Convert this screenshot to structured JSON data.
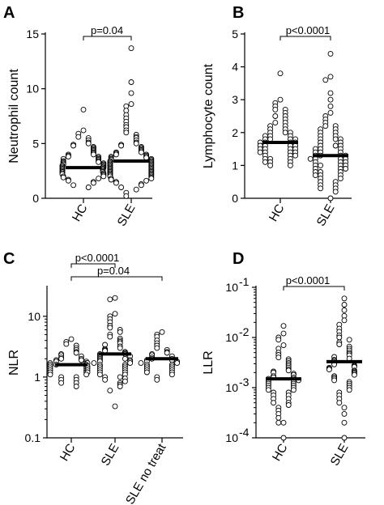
{
  "chart_data": [
    {
      "type": "scatter",
      "panel": "A",
      "ylabel": "Neutrophil count",
      "ylim": [
        0,
        15
      ],
      "yticks": [
        "0",
        "5",
        "10",
        "15"
      ],
      "categories": [
        "HC",
        "SLE"
      ],
      "medians": [
        2.8,
        3.4
      ],
      "annotations": [
        {
          "text": "p=0.04",
          "between": [
            0,
            1
          ]
        }
      ],
      "series": [
        {
          "category": "HC",
          "values": [
            8.1,
            6.2,
            5.9,
            5.6,
            5.5,
            5.3,
            5.1,
            5.0,
            4.9,
            4.8,
            4.7,
            4.6,
            4.5,
            4.4,
            4.3,
            4.2,
            4.1,
            4.0,
            4.0,
            3.9,
            3.8,
            3.8,
            3.7,
            3.6,
            3.6,
            3.5,
            3.4,
            3.4,
            3.3,
            3.3,
            3.2,
            3.2,
            3.1,
            3.1,
            3.0,
            3.0,
            2.9,
            2.9,
            2.8,
            2.8,
            2.8,
            2.7,
            2.7,
            2.6,
            2.6,
            2.5,
            2.5,
            2.4,
            2.4,
            2.3,
            2.3,
            2.2,
            2.2,
            2.1,
            2.0,
            2.0,
            1.9,
            1.8,
            1.7,
            1.6,
            1.5,
            1.4,
            1.2,
            1.0
          ]
        },
        {
          "category": "SLE",
          "values": [
            13.7,
            10.6,
            9.6,
            8.6,
            8.4,
            8.0,
            7.6,
            7.3,
            7.0,
            6.7,
            6.5,
            6.2,
            6.0,
            5.8,
            5.6,
            5.5,
            5.3,
            5.1,
            5.0,
            4.9,
            4.8,
            4.7,
            4.6,
            4.5,
            4.4,
            4.3,
            4.2,
            4.2,
            4.1,
            4.0,
            4.0,
            3.9,
            3.8,
            3.8,
            3.7,
            3.7,
            3.6,
            3.6,
            3.5,
            3.5,
            3.4,
            3.4,
            3.3,
            3.3,
            3.2,
            3.2,
            3.1,
            3.1,
            3.0,
            3.0,
            2.9,
            2.9,
            2.8,
            2.8,
            2.7,
            2.7,
            2.6,
            2.6,
            2.5,
            2.5,
            2.4,
            2.4,
            2.3,
            2.3,
            2.2,
            2.2,
            2.1,
            2.1,
            2.0,
            2.0,
            1.9,
            1.8,
            1.8,
            1.7,
            1.6,
            1.5,
            1.4,
            1.3,
            1.2,
            1.0,
            0.8,
            0.5,
            0.2
          ]
        }
      ]
    },
    {
      "type": "scatter",
      "panel": "B",
      "ylabel": "Lymphocyte count",
      "ylim": [
        0,
        5
      ],
      "yticks": [
        "0",
        "1",
        "2",
        "3",
        "4",
        "5"
      ],
      "categories": [
        "HC",
        "SLE"
      ],
      "medians": [
        1.7,
        1.3
      ],
      "annotations": [
        {
          "text": "p<0.0001",
          "between": [
            0,
            1
          ]
        }
      ],
      "series": [
        {
          "category": "HC",
          "values": [
            3.8,
            3.0,
            2.9,
            2.8,
            2.7,
            2.7,
            2.6,
            2.5,
            2.5,
            2.4,
            2.3,
            2.3,
            2.2,
            2.2,
            2.1,
            2.1,
            2.0,
            2.0,
            2.0,
            1.9,
            1.9,
            1.9,
            1.8,
            1.8,
            1.8,
            1.8,
            1.7,
            1.7,
            1.7,
            1.7,
            1.6,
            1.6,
            1.6,
            1.6,
            1.5,
            1.5,
            1.5,
            1.5,
            1.4,
            1.4,
            1.4,
            1.4,
            1.3,
            1.3,
            1.3,
            1.2,
            1.2,
            1.2,
            1.1,
            1.1,
            1.1,
            1.0,
            1.0
          ]
        },
        {
          "category": "SLE",
          "values": [
            4.4,
            3.7,
            3.6,
            3.2,
            3.0,
            2.8,
            2.6,
            2.5,
            2.4,
            2.3,
            2.2,
            2.2,
            2.1,
            2.1,
            2.0,
            2.0,
            1.9,
            1.9,
            1.8,
            1.8,
            1.8,
            1.7,
            1.7,
            1.6,
            1.6,
            1.6,
            1.5,
            1.5,
            1.5,
            1.4,
            1.4,
            1.4,
            1.3,
            1.3,
            1.3,
            1.3,
            1.2,
            1.2,
            1.2,
            1.2,
            1.1,
            1.1,
            1.1,
            1.0,
            1.0,
            1.0,
            1.0,
            0.9,
            0.9,
            0.9,
            0.8,
            0.8,
            0.8,
            0.7,
            0.7,
            0.7,
            0.6,
            0.6,
            0.5,
            0.5,
            0.4,
            0.4,
            0.3,
            0.3,
            0.2,
            0.0
          ]
        }
      ]
    },
    {
      "type": "scatter",
      "panel": "C",
      "ylabel": "NLR",
      "yscale": "log",
      "ylim": [
        0.1,
        30
      ],
      "yticks": [
        "0.1",
        "1",
        "10"
      ],
      "categories": [
        "HC",
        "SLE",
        "SLE no treat"
      ],
      "medians": [
        1.6,
        2.4,
        2.0
      ],
      "annotations": [
        {
          "text": "p<0.0001",
          "between": [
            0,
            1
          ]
        },
        {
          "text": "p=0.04",
          "between": [
            0,
            2
          ]
        }
      ],
      "series": [
        {
          "category": "HC",
          "values": [
            4.2,
            3.8,
            3.5,
            3.3,
            3.0,
            2.8,
            2.6,
            2.5,
            2.4,
            2.3,
            2.2,
            2.1,
            2.0,
            2.0,
            1.9,
            1.9,
            1.8,
            1.8,
            1.7,
            1.7,
            1.7,
            1.6,
            1.6,
            1.6,
            1.5,
            1.5,
            1.5,
            1.4,
            1.4,
            1.4,
            1.3,
            1.3,
            1.3,
            1.2,
            1.2,
            1.2,
            1.1,
            1.1,
            1.0,
            1.0,
            0.9,
            0.9,
            0.8,
            0.8,
            0.7
          ]
        },
        {
          "category": "SLE",
          "values": [
            20,
            19,
            11,
            10,
            9.0,
            8.0,
            7.0,
            6.5,
            6.0,
            5.5,
            5.0,
            4.6,
            4.3,
            4.0,
            3.8,
            3.6,
            3.4,
            3.2,
            3.0,
            2.9,
            2.8,
            2.7,
            2.6,
            2.5,
            2.4,
            2.4,
            2.3,
            2.2,
            2.2,
            2.1,
            2.0,
            2.0,
            1.9,
            1.9,
            1.8,
            1.8,
            1.7,
            1.7,
            1.6,
            1.6,
            1.5,
            1.5,
            1.4,
            1.4,
            1.3,
            1.3,
            1.2,
            1.2,
            1.1,
            1.1,
            1.0,
            1.0,
            0.95,
            0.9,
            0.85,
            0.8,
            0.75,
            0.7,
            0.6,
            0.33
          ]
        },
        {
          "category": "SLE no treat",
          "values": [
            5.5,
            5.0,
            4.6,
            4.0,
            3.6,
            3.3,
            3.0,
            2.8,
            2.6,
            2.5,
            2.4,
            2.3,
            2.2,
            2.1,
            2.0,
            2.0,
            1.9,
            1.9,
            1.8,
            1.8,
            1.7,
            1.7,
            1.6,
            1.6,
            1.5,
            1.5,
            1.4,
            1.4,
            1.3,
            1.3,
            1.2,
            1.2,
            1.1,
            1.0,
            0.9
          ]
        }
      ]
    },
    {
      "type": "scatter",
      "panel": "D",
      "ylabel": "LLR",
      "yscale": "log",
      "ylim": [
        0.0001,
        0.1
      ],
      "yticks": [
        "10",
        "10",
        "10",
        "10"
      ],
      "ytick_exponents": [
        "-4",
        "-3",
        "-2",
        "-1"
      ],
      "categories": [
        "HC",
        "SLE"
      ],
      "medians": [
        0.0015,
        0.0033
      ],
      "annotations": [
        {
          "text": "p<0.0001",
          "between": [
            0,
            1
          ]
        }
      ],
      "series": [
        {
          "category": "HC",
          "values": [
            0.017,
            0.012,
            0.01,
            0.009,
            0.007,
            0.006,
            0.005,
            0.0045,
            0.004,
            0.0037,
            0.0034,
            0.0031,
            0.0029,
            0.0027,
            0.0025,
            0.0023,
            0.0022,
            0.0021,
            0.002,
            0.0019,
            0.0018,
            0.0017,
            0.0016,
            0.0016,
            0.0015,
            0.0015,
            0.0014,
            0.0014,
            0.0013,
            0.0013,
            0.0012,
            0.0012,
            0.0011,
            0.0011,
            0.001,
            0.001,
            0.0009,
            0.0009,
            0.0008,
            0.0008,
            0.0007,
            0.0007,
            0.0006,
            0.0006,
            0.0005,
            0.0005,
            0.00045,
            0.0004,
            0.00035,
            0.0003,
            0.00025,
            0.0002,
            0.0002,
            0.0001
          ]
        },
        {
          "category": "SLE",
          "values": [
            0.06,
            0.045,
            0.035,
            0.027,
            0.022,
            0.018,
            0.015,
            0.013,
            0.011,
            0.01,
            0.009,
            0.008,
            0.0073,
            0.0066,
            0.006,
            0.0055,
            0.005,
            0.0047,
            0.0044,
            0.0041,
            0.0038,
            0.0036,
            0.0034,
            0.0032,
            0.003,
            0.0029,
            0.0028,
            0.0027,
            0.0026,
            0.0025,
            0.0024,
            0.0023,
            0.0022,
            0.0021,
            0.002,
            0.0019,
            0.0018,
            0.0017,
            0.0016,
            0.0015,
            0.0014,
            0.0013,
            0.0012,
            0.0011,
            0.001,
            0.0009,
            0.0008,
            0.0007,
            0.0006,
            0.0005,
            0.0004,
            0.0003,
            0.0002,
            0.0001
          ]
        }
      ]
    }
  ],
  "panel_letters": [
    "A",
    "B",
    "C",
    "D"
  ]
}
